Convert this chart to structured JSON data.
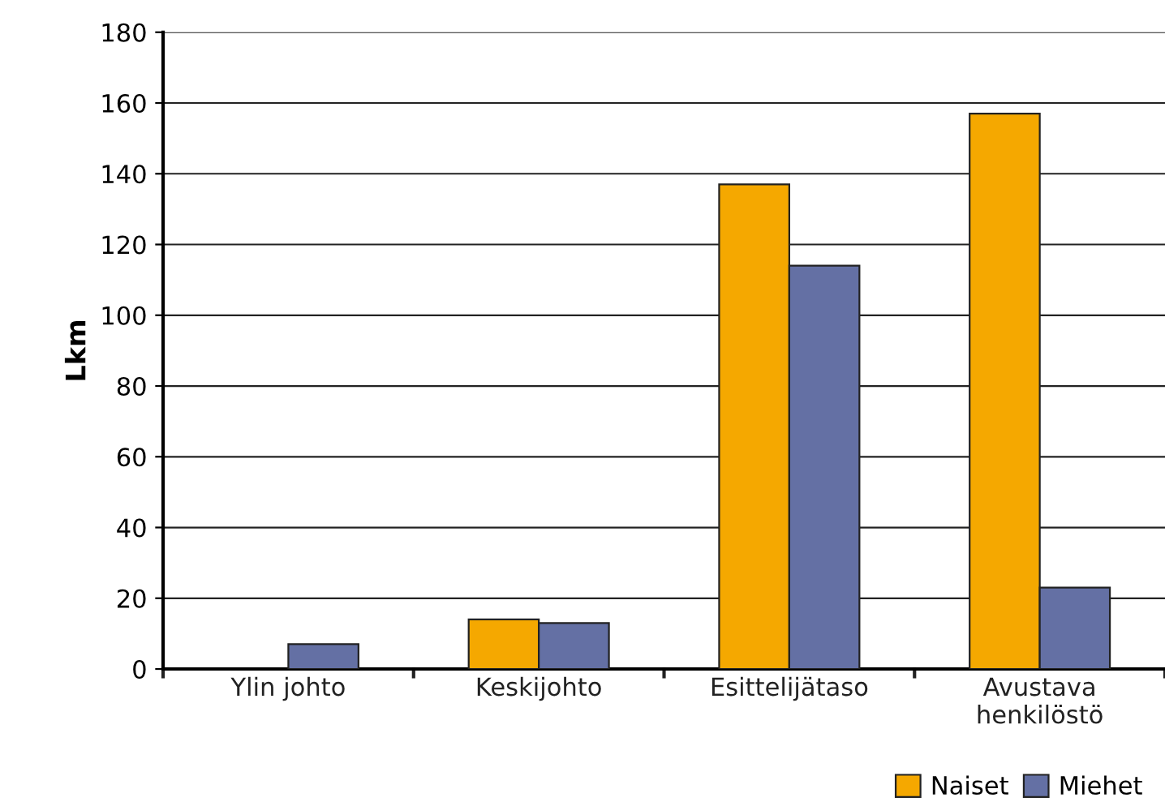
{
  "chart_data": {
    "type": "bar",
    "ylabel": "Lkm",
    "categories": [
      "Ylin johto",
      "Keskijohto",
      "Esittelijätaso",
      "Avustava\nhenkilöstö"
    ],
    "series": [
      {
        "name": "Naiset",
        "color": "#f5a800",
        "values": [
          null,
          14,
          137,
          157
        ]
      },
      {
        "name": "Miehet",
        "color": "#6470a4",
        "values": [
          7,
          13,
          114,
          23
        ]
      }
    ],
    "ylim": [
      0,
      180
    ],
    "yticks": [
      0,
      20,
      40,
      60,
      80,
      100,
      120,
      140,
      160,
      180
    ],
    "grid": "y",
    "legend": "bottom right"
  }
}
